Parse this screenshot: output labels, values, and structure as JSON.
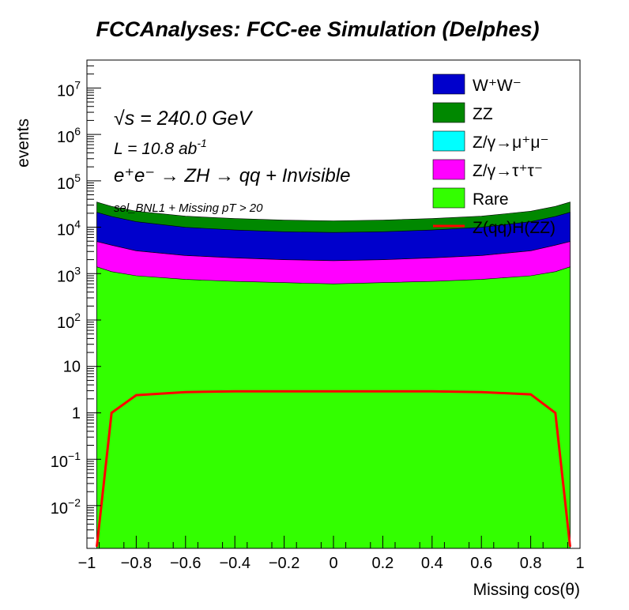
{
  "title": "FCCAnalyses: FCC-ee Simulation (Delphes)",
  "annotations": {
    "energy": "√s = 240.0 GeV",
    "lumi_prefix": "L = 10.8 ab",
    "lumi_sup": "-1",
    "process": "e⁺e⁻ → ZH → qq + Invisible",
    "selection": "sel_BNL1 + Missing pT > 20"
  },
  "chart_data": {
    "type": "area",
    "xlabel": "Missing cos(θ)",
    "ylabel": "events",
    "xlim": [
      -1,
      1
    ],
    "ylim": [
      0.0012,
      40000000
    ],
    "yscale": "log",
    "x_ticks": [
      {
        "value": -1,
        "label": "−1"
      },
      {
        "value": -0.8,
        "label": "−0.8"
      },
      {
        "value": -0.6,
        "label": "−0.6"
      },
      {
        "value": -0.4,
        "label": "−0.4"
      },
      {
        "value": -0.2,
        "label": "−0.2"
      },
      {
        "value": 0,
        "label": "0"
      },
      {
        "value": 0.2,
        "label": "0.2"
      },
      {
        "value": 0.4,
        "label": "0.4"
      },
      {
        "value": 0.6,
        "label": "0.6"
      },
      {
        "value": 0.8,
        "label": "0.8"
      },
      {
        "value": 1,
        "label": "1"
      }
    ],
    "y_ticks": [
      {
        "value": 0.01,
        "base": "10",
        "exp": "−2"
      },
      {
        "value": 0.1,
        "base": "10",
        "exp": "−1"
      },
      {
        "value": 1,
        "base": "1",
        "exp": ""
      },
      {
        "value": 10,
        "base": "10",
        "exp": ""
      },
      {
        "value": 100,
        "base": "10",
        "exp": "2"
      },
      {
        "value": 1000,
        "base": "10",
        "exp": "3"
      },
      {
        "value": 10000,
        "base": "10",
        "exp": "4"
      },
      {
        "value": 100000,
        "base": "10",
        "exp": "5"
      },
      {
        "value": 1000000,
        "base": "10",
        "exp": "6"
      },
      {
        "value": 10000000,
        "base": "10",
        "exp": "7"
      }
    ],
    "x": [
      -0.96,
      -0.9,
      -0.8,
      -0.6,
      -0.4,
      -0.2,
      0,
      0.2,
      0.4,
      0.6,
      0.8,
      0.9,
      0.96
    ],
    "series": [
      {
        "name": "Rare",
        "color": "#33ff00",
        "kind": "stack",
        "values": [
          1400,
          1100,
          900,
          750,
          680,
          640,
          600,
          640,
          680,
          750,
          900,
          1100,
          1400
        ]
      },
      {
        "name": "Z/γ→τ⁺τ⁻",
        "color": "#ff00ff",
        "kind": "stack",
        "values": [
          3500,
          3000,
          2200,
          1700,
          1500,
          1350,
          1300,
          1350,
          1500,
          1700,
          2200,
          3000,
          3500
        ]
      },
      {
        "name": "Z/γ→μ⁺μ⁻",
        "color": "#00ffff",
        "kind": "stack",
        "values": [
          5,
          5,
          5,
          5,
          5,
          5,
          5,
          5,
          5,
          5,
          5,
          5,
          5
        ]
      },
      {
        "name": "W⁺W⁻",
        "color": "#0000cc",
        "kind": "stack",
        "values": [
          16000,
          13000,
          10000,
          7500,
          6500,
          6000,
          5800,
          6000,
          6500,
          7500,
          10000,
          13000,
          16000
        ]
      },
      {
        "name": "ZZ",
        "color": "#008800",
        "kind": "stack",
        "values": [
          14000,
          11000,
          9000,
          7300,
          6700,
          6200,
          6000,
          6200,
          6700,
          7300,
          9000,
          11000,
          14000
        ]
      },
      {
        "name": "Z(qq)H(ZZ)",
        "color": "#ff0000",
        "kind": "line",
        "values": [
          0.0013,
          1,
          2.4,
          2.8,
          2.9,
          2.9,
          2.9,
          2.9,
          2.9,
          2.8,
          2.5,
          1,
          0.0013
        ]
      }
    ],
    "legend_position": "top-right",
    "legend": [
      {
        "label": "W⁺W⁻",
        "color": "#0000cc"
      },
      {
        "label": "ZZ",
        "color": "#008800"
      },
      {
        "label": "Z/γ→μ⁺μ⁻",
        "color": "#00ffff"
      },
      {
        "label": "Z/γ→τ⁺τ⁻",
        "color": "#ff00ff"
      },
      {
        "label": "Rare",
        "color": "#33ff00"
      },
      {
        "label": "Z(qq)H(ZZ)",
        "color": "#ff0000"
      }
    ]
  }
}
